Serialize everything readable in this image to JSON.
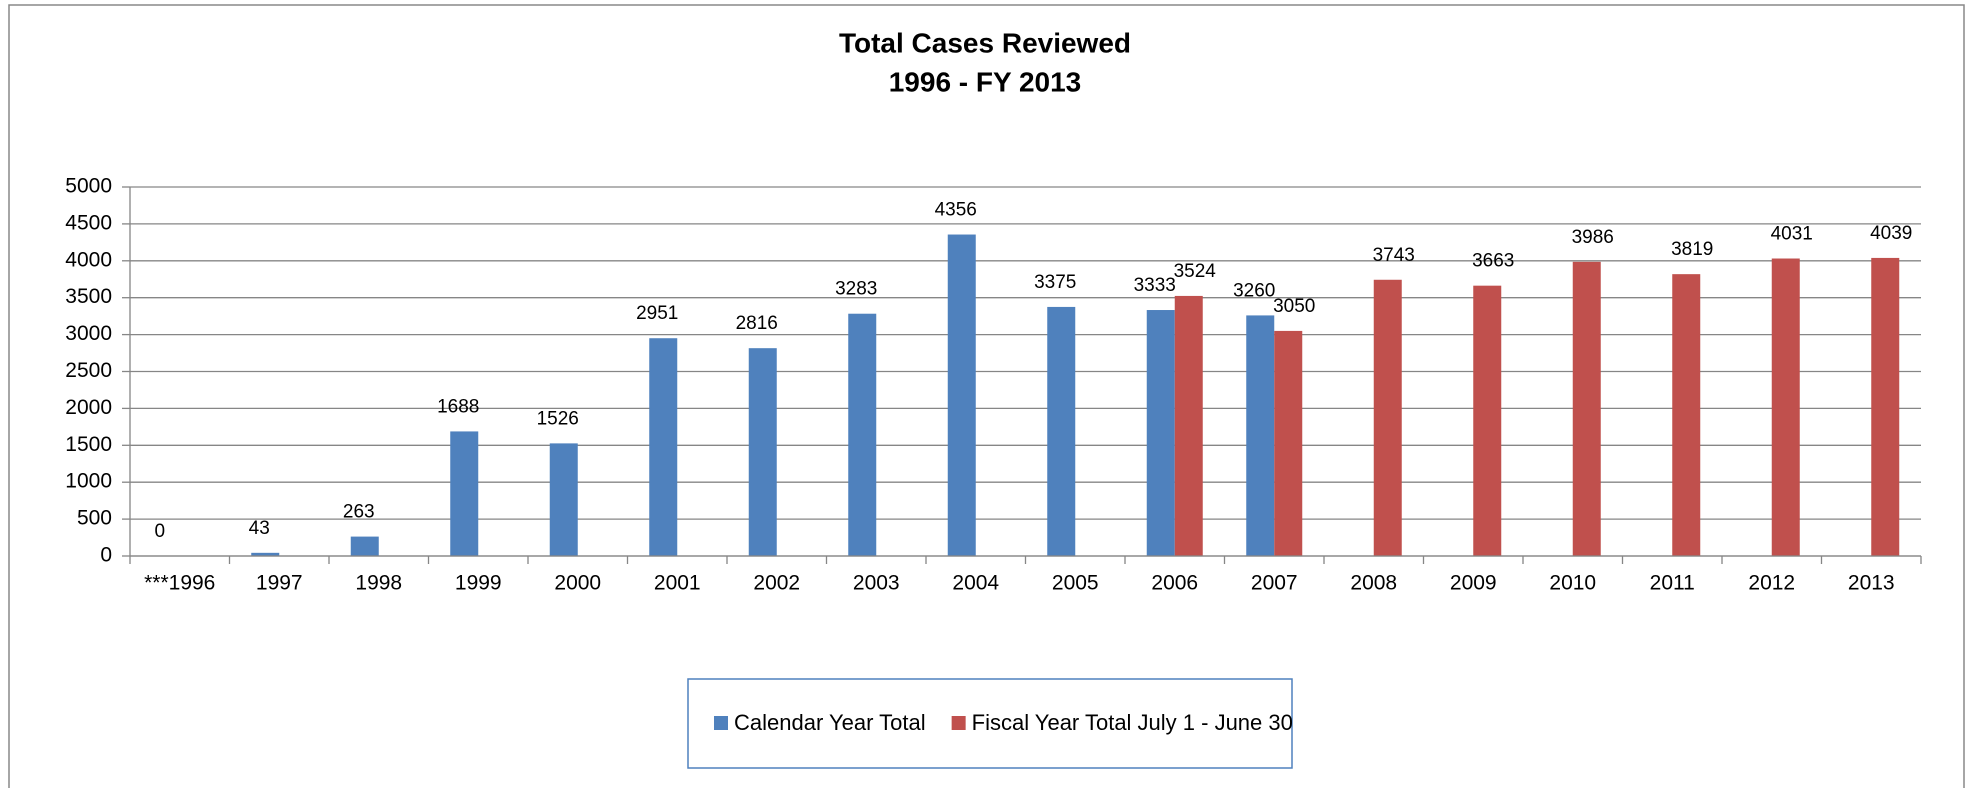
{
  "chart_data": {
    "type": "bar",
    "title": "Total Cases Reviewed",
    "subtitle": "1996 - FY 2013",
    "categories": [
      "***1996",
      "1997",
      "1998",
      "1999",
      "2000",
      "2001",
      "2002",
      "2003",
      "2004",
      "2005",
      "2006",
      "2007",
      "2008",
      "2009",
      "2010",
      "2011",
      "2012",
      "2013"
    ],
    "series": [
      {
        "name": "Calendar Year Total",
        "color": "#4f81bd",
        "values": [
          0,
          43,
          263,
          1688,
          1526,
          2951,
          2816,
          3283,
          4356,
          3375,
          3333,
          3260,
          null,
          null,
          null,
          null,
          null,
          null
        ]
      },
      {
        "name": "Fiscal Year Total July 1 - June 30",
        "color": "#c0504d",
        "values": [
          null,
          null,
          null,
          null,
          null,
          null,
          null,
          null,
          null,
          null,
          3524,
          3050,
          3743,
          3663,
          3986,
          3819,
          4031,
          4039
        ]
      }
    ],
    "ylim": [
      0,
      5000
    ],
    "yticks": [
      0,
      500,
      1000,
      1500,
      2000,
      2500,
      3000,
      3500,
      4000,
      4500,
      5000
    ],
    "grid": true,
    "legend": "bottom"
  }
}
